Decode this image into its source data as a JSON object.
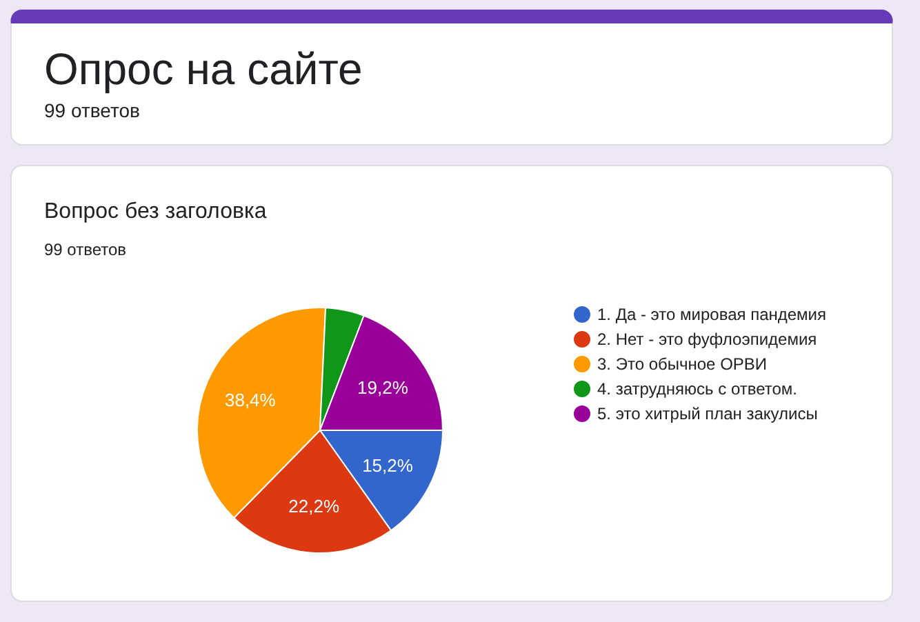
{
  "chart_data": {
    "type": "pie",
    "title": "Вопрос без заголовка",
    "subtitle": "99 ответов",
    "annotations": [
      "Опрос на сайте",
      "99 ответов"
    ],
    "categories": [
      "1. Да - это мировая пандемия",
      "2. Нет - это фуфлоэпидемия",
      "3. Это обычное ОРВИ",
      "4. затрудняюсь с ответом.",
      "5. это хитрый план закулисы"
    ],
    "values": [
      15.2,
      22.2,
      38.4,
      5.1,
      19.2
    ],
    "value_labels": [
      "15,2%",
      "22,2%",
      "38,4%",
      null,
      "19,2%"
    ],
    "colors": [
      "#3366cc",
      "#dc3912",
      "#ff9900",
      "#109618",
      "#990099"
    ],
    "legend": "right"
  }
}
